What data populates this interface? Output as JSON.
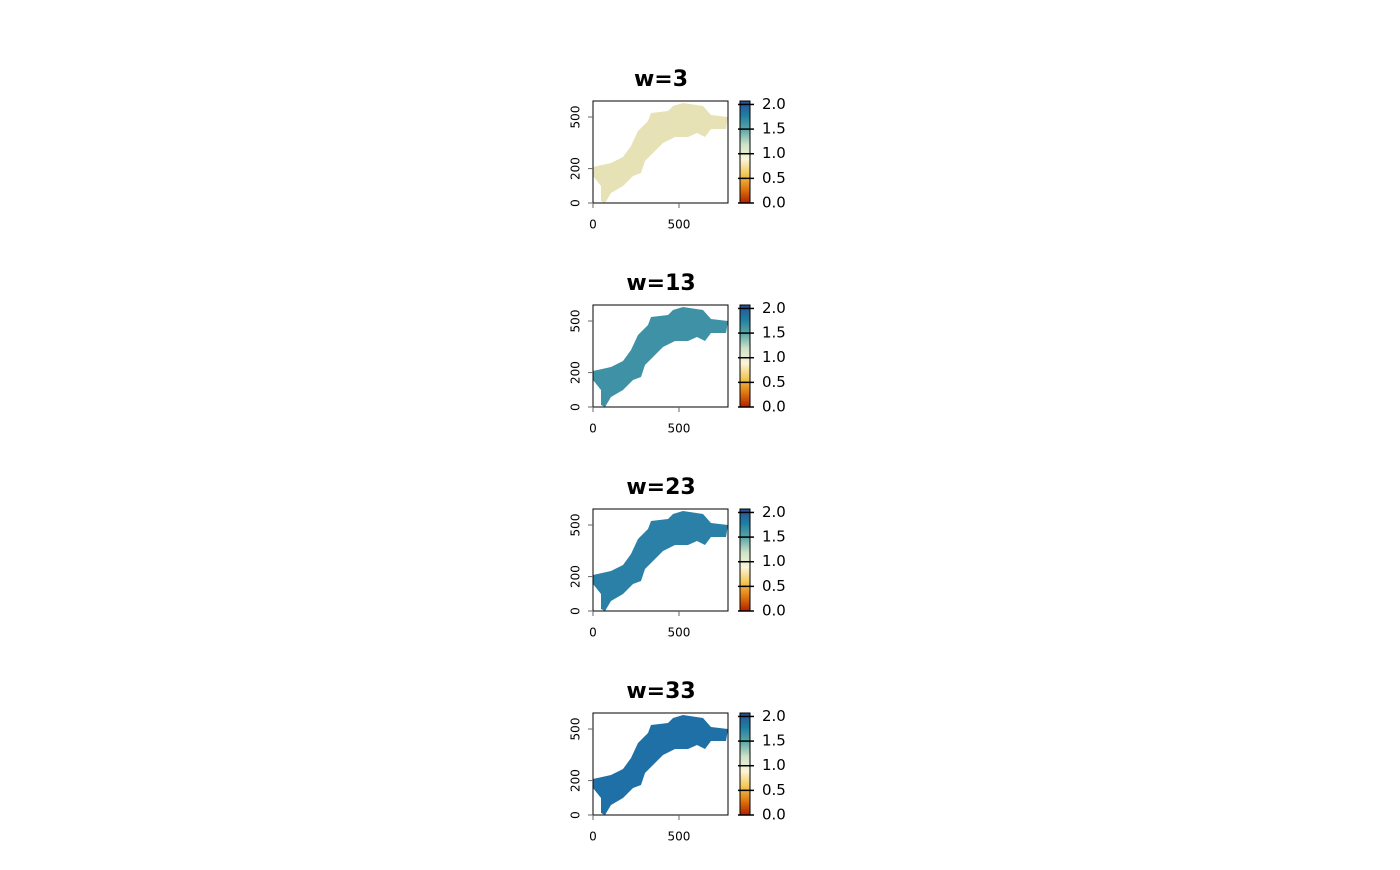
{
  "chart_data": [
    {
      "type": "raster",
      "title": "w=3",
      "xlim": [
        0,
        785
      ],
      "ylim": [
        0,
        593
      ],
      "xticks": [
        0,
        500
      ],
      "yticks": [
        0,
        200,
        500
      ],
      "zlim": [
        0,
        2.07
      ],
      "zticks": [
        {
          "value": 0,
          "label": "0.0"
        },
        {
          "value": 0.5,
          "label": "0.5"
        },
        {
          "value": 1,
          "label": "1.0"
        },
        {
          "value": 1.5,
          "label": "1.5"
        },
        {
          "value": 2,
          "label": "2.0"
        }
      ],
      "colormap": [
        "#b22000",
        "#e07a10",
        "#f3c95a",
        "#fbf5d8",
        "#cfe3c8",
        "#5fa8a8",
        "#1f7fa0",
        "#2a4f98"
      ],
      "fill_color": "#e6e2b6"
    },
    {
      "type": "raster",
      "title": "w=13",
      "xlim": [
        0,
        785
      ],
      "ylim": [
        0,
        593
      ],
      "xticks": [
        0,
        500
      ],
      "yticks": [
        0,
        200,
        500
      ],
      "zlim": [
        0,
        2.07
      ],
      "zticks": [
        {
          "value": 0,
          "label": "0.0"
        },
        {
          "value": 0.5,
          "label": "0.5"
        },
        {
          "value": 1,
          "label": "1.0"
        },
        {
          "value": 1.5,
          "label": "1.5"
        },
        {
          "value": 2,
          "label": "2.0"
        }
      ],
      "colormap": [
        "#b22000",
        "#e07a10",
        "#f3c95a",
        "#fbf5d8",
        "#cfe3c8",
        "#5fa8a8",
        "#1f7fa0",
        "#2a4f98"
      ],
      "fill_color": "#3f92a6"
    },
    {
      "type": "raster",
      "title": "w=23",
      "xlim": [
        0,
        785
      ],
      "ylim": [
        0,
        593
      ],
      "xticks": [
        0,
        500
      ],
      "yticks": [
        0,
        200,
        500
      ],
      "zlim": [
        0,
        2.07
      ],
      "zticks": [
        {
          "value": 0,
          "label": "0.0"
        },
        {
          "value": 0.5,
          "label": "0.5"
        },
        {
          "value": 1,
          "label": "1.0"
        },
        {
          "value": 1.5,
          "label": "1.5"
        },
        {
          "value": 2,
          "label": "2.0"
        }
      ],
      "colormap": [
        "#b22000",
        "#e07a10",
        "#f3c95a",
        "#fbf5d8",
        "#cfe3c8",
        "#5fa8a8",
        "#1f7fa0",
        "#2a4f98"
      ],
      "fill_color": "#2a80a6"
    },
    {
      "type": "raster",
      "title": "w=33",
      "xlim": [
        0,
        785
      ],
      "ylim": [
        0,
        593
      ],
      "xticks": [
        0,
        500
      ],
      "yticks": [
        0,
        200,
        500
      ],
      "zlim": [
        0,
        2.07
      ],
      "zticks": [
        {
          "value": 0,
          "label": "0.0"
        },
        {
          "value": 0.5,
          "label": "0.5"
        },
        {
          "value": 1,
          "label": "1.0"
        },
        {
          "value": 1.5,
          "label": "1.5"
        },
        {
          "value": 2,
          "label": "2.0"
        }
      ],
      "colormap": [
        "#b22000",
        "#e07a10",
        "#f3c95a",
        "#fbf5d8",
        "#cfe3c8",
        "#5fa8a8",
        "#1f7fa0",
        "#2a4f98"
      ],
      "fill_color": "#1f70a6"
    }
  ]
}
